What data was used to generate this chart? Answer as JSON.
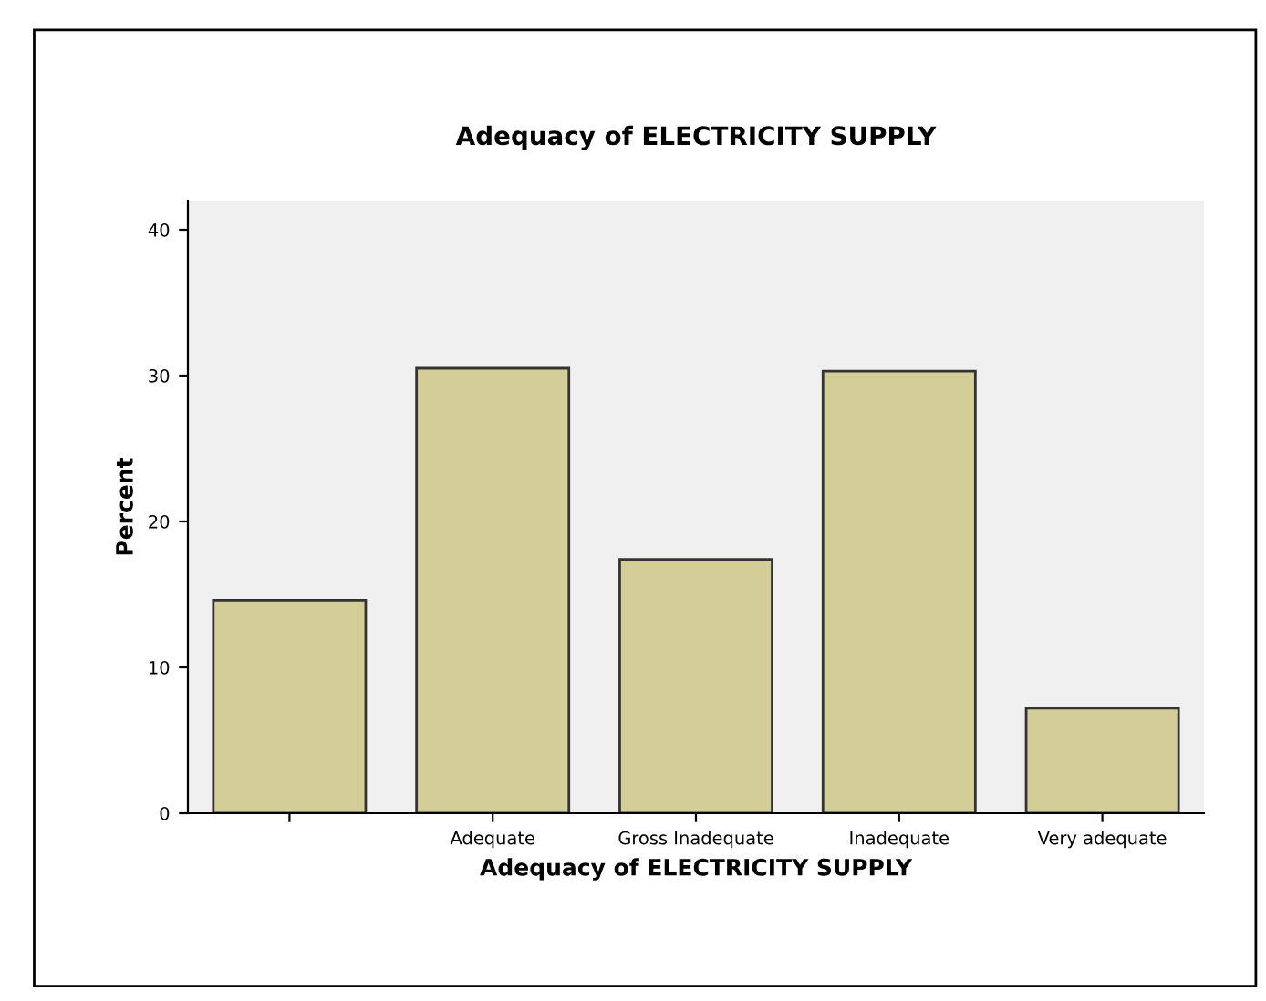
{
  "chart_data": {
    "type": "bar",
    "title": "Adequacy of ELECTRICITY SUPPLY",
    "xlabel": "Adequacy of ELECTRICITY SUPPLY",
    "ylabel": "Percent",
    "categories": [
      null,
      "Adequate",
      "Gross Inadequate",
      "Inadequate",
      "Very adequate"
    ],
    "values": [
      14.6,
      30.5,
      17.4,
      30.3,
      7.2
    ],
    "color": "#d3ce97",
    "ylim": [
      0,
      42
    ],
    "yticks": [
      0,
      10,
      20,
      30,
      40
    ],
    "grid": false
  }
}
